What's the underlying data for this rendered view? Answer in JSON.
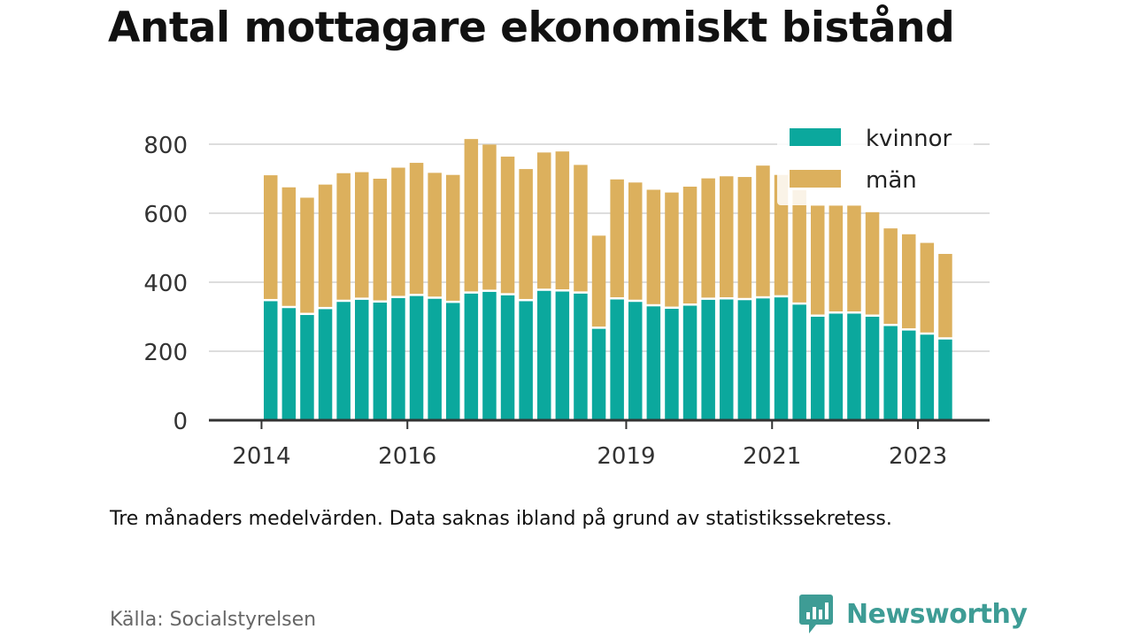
{
  "chart_data": {
    "type": "bar",
    "stacked": true,
    "title": "Antal mottagare ekonomiskt bistånd",
    "xlabel": "",
    "ylabel": "",
    "ylim": [
      0,
      820
    ],
    "yticks": [
      0,
      200,
      400,
      600,
      800
    ],
    "x_tick_labels": [
      {
        "label": "2014",
        "index": -0.5
      },
      {
        "label": "2016",
        "index": 7.5
      },
      {
        "label": "2019",
        "index": 19.5
      },
      {
        "label": "2021",
        "index": 27.5
      },
      {
        "label": "2023",
        "index": 35.5
      }
    ],
    "grid": true,
    "legend_position": "top-right",
    "colors": {
      "kvinnor": "#0ba89d",
      "man": "#dcb05d",
      "axis": "#333333",
      "grid": "#dddddd"
    },
    "series": [
      {
        "name": "kvinnor",
        "values": [
          345,
          325,
          305,
          322,
          343,
          349,
          341,
          354,
          360,
          352,
          340,
          367,
          372,
          362,
          345,
          375,
          373,
          367,
          265,
          350,
          343,
          330,
          323,
          332,
          349,
          350,
          348,
          353,
          356,
          335,
          300,
          309,
          309,
          300,
          273,
          260,
          248,
          234
        ]
      },
      {
        "name": "män",
        "values": [
          365,
          350,
          340,
          361,
          373,
          370,
          359,
          378,
          386,
          365,
          371,
          448,
          427,
          402,
          383,
          401,
          406,
          373,
          270,
          348,
          346,
          338,
          337,
          345,
          352,
          357,
          357,
          385,
          355,
          332,
          322,
          313,
          313,
          303,
          283,
          279,
          266,
          248
        ]
      }
    ]
  },
  "note": "Tre månaders medelvärden. Data saknas ibland på grund av statistikssekretess.",
  "source": "Källa: Socialstyrelsen",
  "brand": {
    "name": "Newsworthy",
    "icon": "bar-chart-speech-bubble-icon",
    "color": "#3e9c95"
  }
}
